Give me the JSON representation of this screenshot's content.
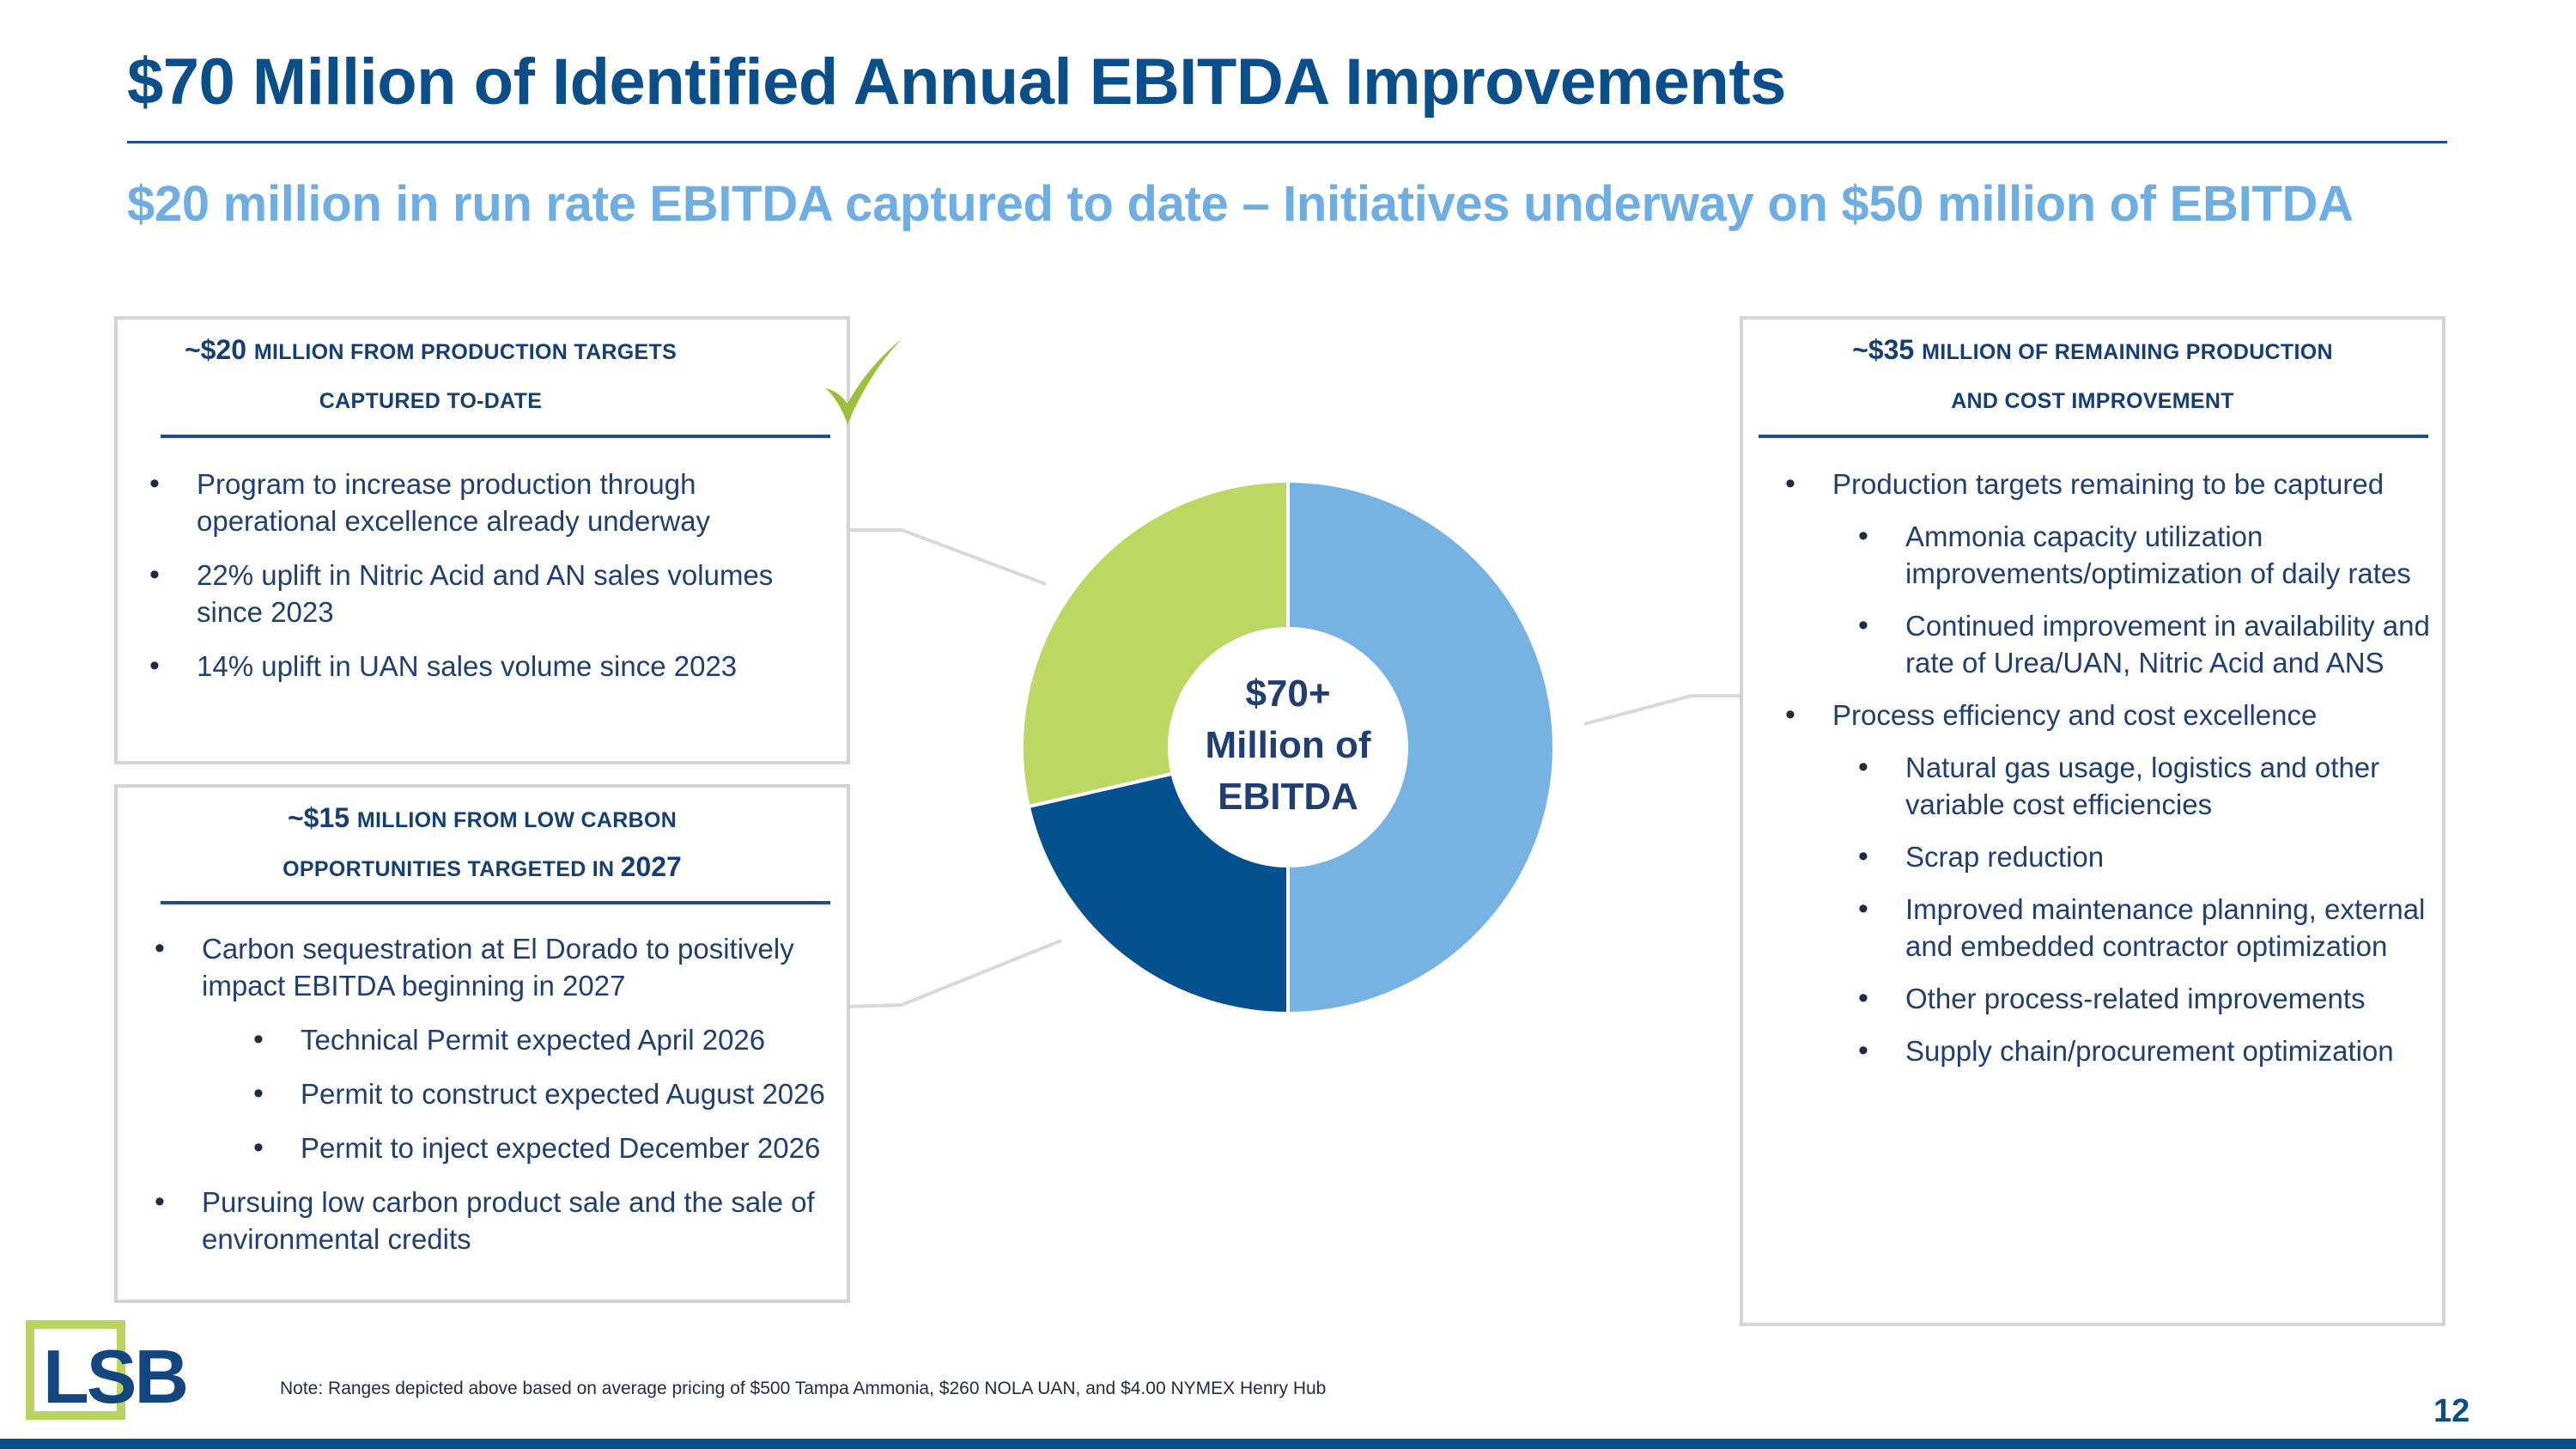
{
  "slide": {
    "title": "$70 Million of Identified Annual EBITDA Improvements",
    "subtitle": "$20 million in run rate EBITDA captured to date – Initiatives underway on $50 million of EBITDA",
    "note": "Note: Ranges depicted above based on average pricing of $500 Tampa Ammonia, $260 NOLA UAN, and $4.00 NYMEX Henry Hub",
    "page_number": "12",
    "logo_text": "LSB"
  },
  "panel_top_left": {
    "heading_line1_prefix": "~$20 ",
    "heading_line1_rest": "Million from Production Targets",
    "heading_line2": "Captured To-Date",
    "checkmark": "check-icon",
    "bullets": [
      "Program to increase production through operational excellence already underway",
      "22% uplift in Nitric Acid and AN sales volumes since 2023",
      "14% uplift in UAN sales volume since 2023"
    ]
  },
  "panel_bottom_left": {
    "heading_line1_prefix": "~$15 ",
    "heading_line1_rest": "Million from Low carbon",
    "heading_line2_rest": "opportunities Targeted in ",
    "heading_line2_year": "2027",
    "bullets": [
      "Carbon sequestration at El Dorado to positively impact EBITDA beginning in 2027",
      "Technical Permit expected April 2026",
      "Permit to construct expected August 2026",
      "Permit to inject expected December 2026",
      "Pursuing low carbon product sale and the sale of environmental credits"
    ]
  },
  "panel_right": {
    "heading_line1_prefix": "~$35 ",
    "heading_line1_rest": "Million of Remaining Production",
    "heading_line2": "and Cost Improvement",
    "bullets": [
      "Production targets remaining to be captured",
      "Ammonia capacity utilization improvements/optimization of daily rates",
      "Continued improvement in availability and rate of Urea/UAN, Nitric Acid and ANS",
      "Process efficiency and cost excellence",
      "Natural gas usage, logistics and other variable cost efficiencies",
      "Scrap reduction",
      "Improved maintenance planning, external and embedded contractor optimization",
      "Other process-related improvements",
      "Supply chain/procurement optimization"
    ]
  },
  "chart_data": {
    "type": "pie",
    "variant": "donut",
    "title": "",
    "center_label": [
      "$70+",
      "Million of",
      "EBITDA"
    ],
    "categories": [
      "Remaining Production and Cost Improvement",
      "Low Carbon Opportunities Targeted in 2027",
      "Production Targets Captured To-Date"
    ],
    "values": [
      35,
      15,
      20
    ],
    "units": "$ millions",
    "colors": [
      "#76b3e3",
      "#05508e",
      "#bdd763"
    ]
  }
}
